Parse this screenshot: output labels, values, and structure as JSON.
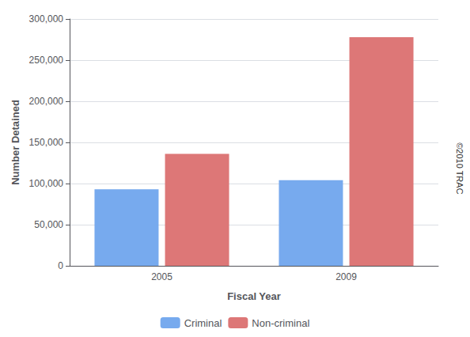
{
  "chart_data": {
    "type": "bar",
    "xlabel": "Fiscal Year",
    "ylabel": "Number Detained",
    "categories": [
      "2005",
      "2009"
    ],
    "series": [
      {
        "name": "Criminal",
        "color": "#77AAEE",
        "values": [
          93000,
          104000
        ]
      },
      {
        "name": "Non-criminal",
        "color": "#DD7777",
        "values": [
          136000,
          278000
        ]
      }
    ],
    "ylim": [
      0,
      300000
    ],
    "yticks": [
      0,
      {
        "value": 50000,
        "label": "50,000"
      },
      {
        "value": 100000,
        "label": "100,000"
      },
      {
        "value": 150000,
        "label": "150,000"
      },
      {
        "value": 200000,
        "label": "200,000"
      },
      {
        "value": 250000,
        "label": "250,000"
      },
      {
        "value": 300000,
        "label": "300,000"
      }
    ],
    "grid": true,
    "legend": "bottom",
    "annotation": "©2010 TRAC"
  }
}
